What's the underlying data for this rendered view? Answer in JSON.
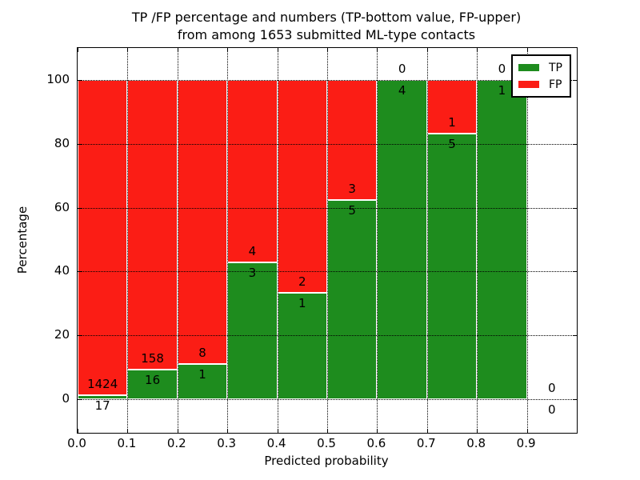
{
  "figure": {
    "title_line1": "TP /FP percentage and numbers (TP-bottom value, FP-upper)",
    "title_line2": "from among 1653 submitted ML-type contacts",
    "xlabel": "Predicted probability",
    "ylabel": "Percentage"
  },
  "legend": {
    "items": [
      {
        "label": "TP",
        "color": "#1e8c1e"
      },
      {
        "label": "FP",
        "color": "#fb1d15"
      }
    ]
  },
  "colors": {
    "tp_green": "#1e8c1e",
    "fp_red": "#fb1d15",
    "axis_black": "#000000",
    "background": "#ffffff"
  },
  "chart_data": {
    "type": "bar",
    "stacked": true,
    "title": "TP /FP percentage and numbers (TP-bottom value, FP-upper) from among 1653 submitted ML-type contacts",
    "xlabel": "Predicted probability",
    "ylabel": "Percentage",
    "xlim": [
      0.0,
      1.0
    ],
    "ylim": [
      0,
      100
    ],
    "grid": true,
    "legend_position": "upper right",
    "bin_width": 0.1,
    "bin_starts": [
      0.0,
      0.1,
      0.2,
      0.3,
      0.4,
      0.5,
      0.6,
      0.7,
      0.8,
      0.9
    ],
    "xtick_labels": [
      "0.0",
      "0.1",
      "0.2",
      "0.3",
      "0.4",
      "0.5",
      "0.6",
      "0.7",
      "0.8",
      "0.9"
    ],
    "ytick_values": [
      0,
      20,
      40,
      60,
      80,
      100
    ],
    "series": [
      {
        "name": "TP",
        "stack_position": "bottom",
        "color": "#1e8c1e",
        "counts": [
          17,
          16,
          1,
          3,
          1,
          5,
          4,
          5,
          1,
          0
        ]
      },
      {
        "name": "FP",
        "stack_position": "top",
        "color": "#fb1d15",
        "counts": [
          1424,
          158,
          8,
          4,
          2,
          3,
          0,
          1,
          0,
          0
        ]
      }
    ],
    "tp_percent_heights": [
      1.18,
      9.2,
      11.11,
      42.86,
      33.33,
      62.5,
      100.0,
      83.33,
      100.0,
      null
    ],
    "total_contacts": 1653
  }
}
